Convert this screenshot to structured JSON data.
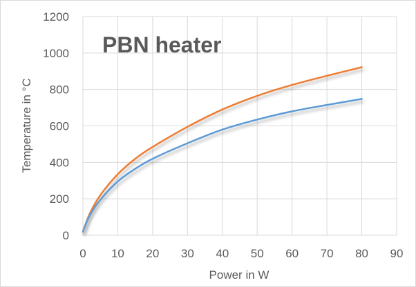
{
  "chart_data": {
    "type": "line",
    "title": "PBN heater",
    "xlabel": "Power in W",
    "ylabel": "Temperature in °C",
    "xlim": [
      0,
      90
    ],
    "ylim": [
      0,
      1200
    ],
    "x_ticks": [
      0,
      10,
      20,
      30,
      40,
      50,
      60,
      70,
      80,
      90
    ],
    "y_ticks": [
      0,
      200,
      400,
      600,
      800,
      1000,
      1200
    ],
    "grid": true,
    "legend": "none",
    "series": [
      {
        "color": "#ED7D31",
        "x": [
          0,
          2,
          5,
          10,
          15,
          20,
          30,
          40,
          50,
          60,
          70,
          80
        ],
        "values": [
          20,
          120,
          220,
          335,
          420,
          485,
          595,
          690,
          765,
          825,
          875,
          922
        ]
      },
      {
        "color": "#5B9BD5",
        "x": [
          0,
          2,
          5,
          10,
          15,
          20,
          30,
          40,
          50,
          60,
          70,
          80
        ],
        "values": [
          20,
          110,
          195,
          295,
          365,
          420,
          505,
          580,
          635,
          680,
          715,
          748
        ]
      }
    ]
  }
}
